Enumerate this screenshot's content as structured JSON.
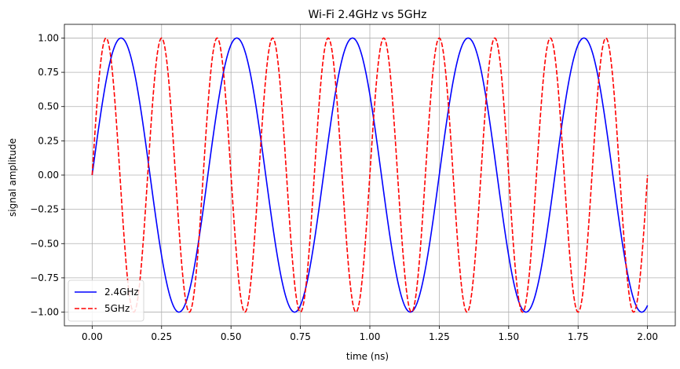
{
  "chart_data": {
    "type": "line",
    "title": "Wi-Fi 2.4GHz vs 5GHz",
    "xlabel": "time (ns)",
    "ylabel": "signal amplitude",
    "xlim": [
      -0.1,
      2.1
    ],
    "ylim": [
      -1.1,
      1.1
    ],
    "x_ticks": [
      "0.00",
      "0.25",
      "0.50",
      "0.75",
      "1.00",
      "1.25",
      "1.50",
      "1.75",
      "2.00"
    ],
    "y_ticks": [
      "−1.00",
      "−0.75",
      "−0.50",
      "−0.25",
      "0.00",
      "0.25",
      "0.50",
      "0.75",
      "1.00"
    ],
    "x_tick_values": [
      0,
      0.25,
      0.5,
      0.75,
      1.0,
      1.25,
      1.5,
      1.75,
      2.0
    ],
    "y_tick_values": [
      -1,
      -0.75,
      -0.5,
      -0.25,
      0,
      0.25,
      0.5,
      0.75,
      1
    ],
    "grid": true,
    "legend_position": "lower-left",
    "series": [
      {
        "name": "2.4GHz",
        "function": "sin(2*pi*2.4*t)",
        "frequency": 2.4,
        "x_range": [
          0,
          2
        ],
        "color": "#0000ff",
        "linestyle": "solid"
      },
      {
        "name": "5GHz",
        "function": "sin(2*pi*5*t)",
        "frequency": 5,
        "x_range": [
          0,
          2
        ],
        "color": "#ff0000",
        "linestyle": "dashed"
      }
    ]
  }
}
